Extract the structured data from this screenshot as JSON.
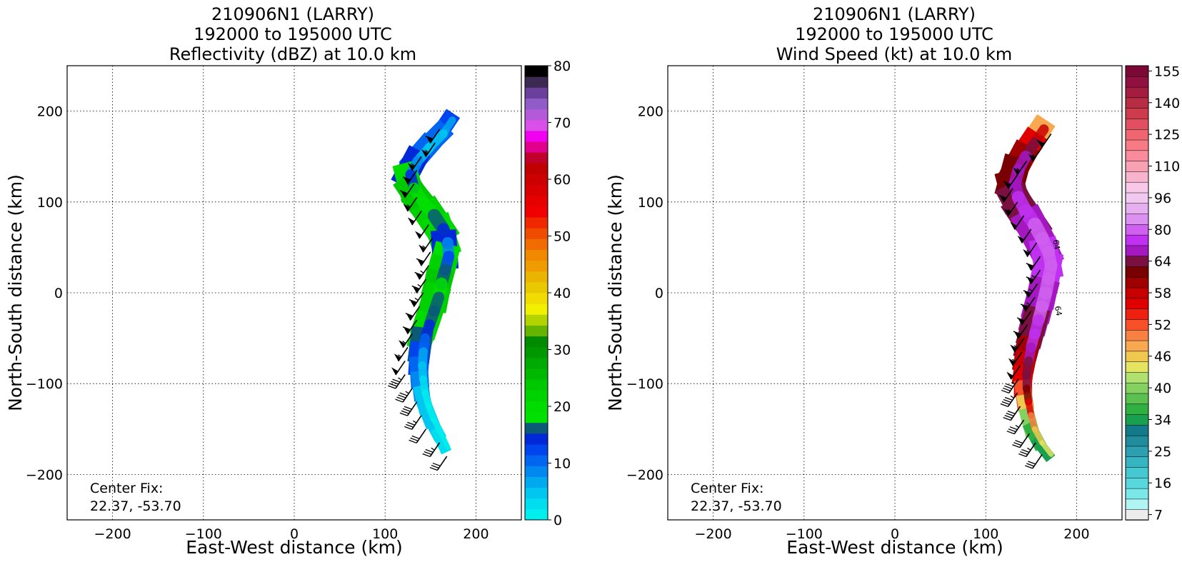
{
  "chart_data": [
    {
      "type": "heatmap",
      "title": [
        "210906N1 (LARRY)",
        "192000 to 195000 UTC",
        "Reflectivity (dBZ) at 10.0 km"
      ],
      "xlabel": "East-West distance (km)",
      "ylabel": "North-South distance (km)",
      "xlim": [
        -250,
        250
      ],
      "ylim": [
        -250,
        250
      ],
      "xticks": [
        -200,
        -100,
        0,
        100,
        200
      ],
      "yticks": [
        -200,
        -100,
        0,
        100,
        200
      ],
      "grid": true,
      "annotation": [
        "Center Fix:",
        "22.37, -53.70"
      ],
      "colorbar": {
        "label_values": [
          0,
          10,
          20,
          30,
          40,
          50,
          60,
          70,
          80
        ],
        "range": [
          0,
          80
        ],
        "colors": [
          "#00eeee",
          "#00ddee",
          "#00c6f0",
          "#00a8f0",
          "#0088f0",
          "#0066f0",
          "#0044ee",
          "#0028d8",
          "#0a5a78",
          "#00e000",
          "#00dc00",
          "#00d200",
          "#00c800",
          "#00b800",
          "#00aa00",
          "#009800",
          "#008a00",
          "#66b400",
          "#b4d400",
          "#f0f000",
          "#f0dc00",
          "#eac800",
          "#eab400",
          "#f09c00",
          "#f08800",
          "#f06c00",
          "#f04c00",
          "#f02800",
          "#f00000",
          "#e60000",
          "#d80000",
          "#cc0000",
          "#c00000",
          "#c0002a",
          "#e0008c",
          "#f000f0",
          "#d850e8",
          "#b45ad8",
          "#905cc8",
          "#6a409c",
          "#3c2a52",
          "#000000"
        ]
      },
      "swath": {
        "center_x": [
          170,
          160,
          145,
          132,
          124,
          128,
          138,
          150,
          160,
          165,
          166,
          162,
          158,
          155,
          150,
          145,
          140,
          138,
          137,
          138,
          140,
          144,
          150,
          158,
          165
        ],
        "y": [
          190,
          175,
          160,
          145,
          130,
          115,
          100,
          85,
          70,
          55,
          40,
          25,
          10,
          -5,
          -20,
          -35,
          -50,
          -65,
          -80,
          -95,
          -110,
          -125,
          -140,
          -155,
          -170
        ],
        "width": [
          18,
          22,
          24,
          26,
          26,
          28,
          30,
          32,
          30,
          28,
          28,
          30,
          30,
          28,
          28,
          26,
          24,
          22,
          20,
          18,
          16,
          16,
          14,
          12,
          10
        ],
        "values": [
          12,
          10,
          10,
          14,
          20,
          24,
          24,
          22,
          20,
          15,
          18,
          22,
          24,
          22,
          22,
          20,
          16,
          12,
          10,
          8,
          5,
          4,
          4,
          3,
          2
        ]
      },
      "barbs": {
        "x": [
          160,
          155,
          140,
          135,
          132,
          135,
          140,
          148,
          152,
          150,
          148,
          145,
          142,
          138,
          135,
          130,
          125,
          122,
          122,
          130,
          135,
          140,
          145,
          160,
          168
        ],
        "y": [
          180,
          165,
          150,
          135,
          120,
          105,
          90,
          75,
          60,
          45,
          30,
          15,
          0,
          -15,
          -30,
          -45,
          -60,
          -75,
          -90,
          -105,
          -120,
          -135,
          -150,
          -165,
          -180
        ],
        "speed_kt": [
          60,
          55,
          55,
          60,
          60,
          55,
          50,
          50,
          55,
          60,
          65,
          65,
          65,
          60,
          60,
          55,
          55,
          50,
          45,
          45,
          40,
          35,
          30,
          35,
          30
        ]
      }
    },
    {
      "type": "heatmap",
      "title": [
        "210906N1 (LARRY)",
        "192000 to 195000 UTC",
        "Wind Speed (kt) at 10.0 km"
      ],
      "xlabel": "East-West distance (km)",
      "ylabel": "North-South distance (km)",
      "xlim": [
        -250,
        250
      ],
      "ylim": [
        -250,
        250
      ],
      "xticks": [
        -200,
        -100,
        0,
        100,
        200
      ],
      "yticks": [
        -200,
        -100,
        0,
        100,
        200
      ],
      "grid": true,
      "annotation": [
        "Center Fix:",
        "22.37, -53.70"
      ],
      "contour_labels": [
        "64",
        "64"
      ],
      "colorbar": {
        "label_values": [
          7,
          16,
          25,
          34,
          40,
          46,
          52,
          58,
          64,
          80,
          96,
          110,
          125,
          140,
          155
        ],
        "tick_levels": [
          7,
          10,
          13,
          16,
          19,
          22,
          25,
          28,
          31,
          34,
          36,
          38,
          40,
          42,
          44,
          46,
          48,
          50,
          52,
          54,
          56,
          58,
          60,
          62,
          64,
          69,
          74,
          80,
          85,
          90,
          96,
          101,
          105,
          110,
          115,
          120,
          125,
          130,
          135,
          140,
          145,
          150,
          155,
          160
        ],
        "colors": [
          "#ececec",
          "#b0f4f4",
          "#7ae8e8",
          "#58d8dc",
          "#46c8d2",
          "#36b4c0",
          "#2ca0b0",
          "#208c9c",
          "#127a88",
          "#18a050",
          "#30b040",
          "#5ac050",
          "#84d060",
          "#b0e070",
          "#e4e460",
          "#f0c850",
          "#f8a850",
          "#f88040",
          "#f85028",
          "#f02010",
          "#e00000",
          "#c80000",
          "#a00000",
          "#780000",
          "#7a1040",
          "#a418c0",
          "#c030f0",
          "#d060f0",
          "#dc90f0",
          "#e6b0f0",
          "#f0c8f0",
          "#f8c8e8",
          "#f8b4cc",
          "#f8a0b4",
          "#f88c9c",
          "#f87a84",
          "#f06670",
          "#e05060",
          "#cc3c4c",
          "#b82c44",
          "#a41c40",
          "#901040",
          "#7c0836"
        ]
      },
      "swath": {
        "center_x": [
          160,
          150,
          140,
          132,
          128,
          132,
          140,
          150,
          158,
          165,
          168,
          165,
          162,
          158,
          154,
          150,
          146,
          143,
          141,
          141,
          143,
          146,
          150,
          158,
          168
        ],
        "y": [
          180,
          165,
          150,
          135,
          120,
          105,
          90,
          75,
          60,
          45,
          30,
          15,
          0,
          -15,
          -30,
          -45,
          -60,
          -75,
          -90,
          -105,
          -120,
          -135,
          -150,
          -165,
          -178
        ],
        "width": [
          24,
          26,
          28,
          30,
          30,
          32,
          34,
          34,
          32,
          30,
          30,
          32,
          32,
          30,
          28,
          26,
          24,
          22,
          20,
          18,
          16,
          16,
          14,
          12,
          10
        ],
        "values": [
          48,
          56,
          60,
          62,
          62,
          64,
          66,
          70,
          72,
          74,
          74,
          74,
          72,
          70,
          66,
          64,
          60,
          58,
          56,
          52,
          46,
          40,
          36,
          34,
          30
        ]
      },
      "barbs": {
        "x": [
          172,
          162,
          145,
          135,
          130,
          135,
          142,
          150,
          156,
          160,
          160,
          157,
          154,
          150,
          146,
          142,
          140,
          138,
          136,
          135,
          138,
          142,
          148,
          155,
          162
        ],
        "y": [
          175,
          160,
          145,
          130,
          115,
          100,
          85,
          70,
          55,
          40,
          25,
          10,
          -5,
          -20,
          -35,
          -50,
          -65,
          -80,
          -95,
          -110,
          -125,
          -140,
          -155,
          -165,
          -178
        ],
        "speed_kt": [
          60,
          55,
          55,
          60,
          60,
          55,
          50,
          50,
          55,
          60,
          65,
          65,
          65,
          60,
          60,
          55,
          55,
          50,
          45,
          45,
          40,
          35,
          30,
          35,
          30
        ]
      }
    }
  ]
}
